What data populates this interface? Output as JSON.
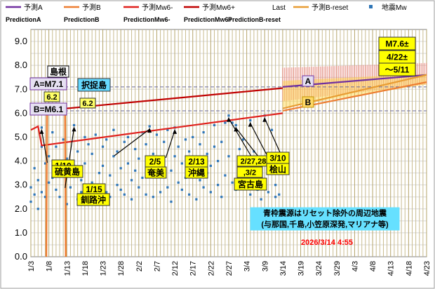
{
  "chart_data": {
    "type": "scatter",
    "title": "",
    "xlabel": "",
    "ylabel": "",
    "ylim": [
      0,
      9.5
    ],
    "y_ticks": [
      "0.0",
      "0.5",
      "1.0",
      "1.5",
      "2.0",
      "2.5",
      "3.0",
      "3.5",
      "4.0",
      "4.5",
      "5.0",
      "5.5",
      "6.0",
      "6.5",
      "7.0",
      "7.5",
      "8.0",
      "8.5",
      "9.0"
    ],
    "x_day_range": [
      3,
      113
    ],
    "x_ticks": [
      {
        "day": 3,
        "label": "1/3"
      },
      {
        "day": 8,
        "label": "1/8"
      },
      {
        "day": 13,
        "label": "1/13"
      },
      {
        "day": 18,
        "label": "1/18"
      },
      {
        "day": 23,
        "label": "1/23"
      },
      {
        "day": 28,
        "label": "1/28"
      },
      {
        "day": 33,
        "label": "2/2"
      },
      {
        "day": 38,
        "label": "2/7"
      },
      {
        "day": 43,
        "label": "2/12"
      },
      {
        "day": 48,
        "label": "2/17"
      },
      {
        "day": 53,
        "label": "2/22"
      },
      {
        "day": 58,
        "label": "2/27"
      },
      {
        "day": 63,
        "label": "3/4"
      },
      {
        "day": 68,
        "label": "3/9"
      },
      {
        "day": 73,
        "label": "3/14"
      },
      {
        "day": 78,
        "label": "3/19"
      },
      {
        "day": 83,
        "label": "3/24"
      },
      {
        "day": 88,
        "label": "3/29"
      },
      {
        "day": 93,
        "label": "4/3"
      },
      {
        "day": 98,
        "label": "4/8"
      },
      {
        "day": 103,
        "label": "4/13"
      },
      {
        "day": 108,
        "label": "4/18"
      },
      {
        "day": 113,
        "label": "4/23"
      }
    ],
    "legend": [
      {
        "label": "予測A",
        "sub": "PredictionA",
        "color": "#7030a0",
        "kind": "line"
      },
      {
        "label": "予測B",
        "sub": "PredictionB",
        "color": "#ed7d31",
        "kind": "line"
      },
      {
        "label": "予測Mw6-",
        "sub": "PredictionMw6-",
        "color": "#e0201c",
        "kind": "line"
      },
      {
        "label": "予測Mw6+",
        "sub": "PredictionMw6+",
        "color": "#c00000",
        "kind": "line"
      },
      {
        "label": "Last",
        "sub": "PredictionB-reset",
        "color": "none",
        "kind": "text"
      },
      {
        "label": "予測B-reset",
        "sub": "",
        "color": "#e89c32",
        "kind": "line"
      },
      {
        "label": "地震Mw",
        "sub": "",
        "color": "#2e75b6",
        "kind": "point"
      }
    ],
    "series": [
      {
        "name": "予測Mw6+",
        "color": "#c00000",
        "points": [
          [
            13,
            6.2
          ],
          [
            73,
            7.05
          ]
        ]
      },
      {
        "name": "予測Mw6-",
        "color": "#e0201c",
        "points": [
          [
            3,
            5.3
          ],
          [
            5,
            5.45
          ],
          [
            6,
            4.65
          ],
          [
            73,
            6.0
          ]
        ]
      },
      {
        "name": "予測A",
        "color": "#7030a0",
        "points": [
          [
            73,
            7.1
          ],
          [
            113,
            7.6
          ]
        ]
      },
      {
        "name": "予測B",
        "color": "#ed7d31",
        "points": [
          [
            73,
            6.1
          ],
          [
            113,
            7.3
          ]
        ]
      },
      {
        "name": "予測B-reset",
        "color": "#e89c32",
        "points": [
          [
            73,
            6.2
          ],
          [
            113,
            7.6
          ]
        ]
      },
      {
        "name": "予測B reset spikes",
        "color": "#ed7d31",
        "points": [
          [
            7.3,
            0.0
          ],
          [
            7.5,
            6.2
          ],
          [
            12.5,
            6.2
          ],
          [
            12.7,
            0.0
          ]
        ]
      }
    ],
    "reference_lines": [
      {
        "label": "A=M7.1",
        "y": 7.1
      },
      {
        "label": "B=M6.1",
        "y": 6.1
      }
    ],
    "uncertainty_band": {
      "x_from": 73,
      "x_to": 113,
      "upper_from": 7.9,
      "upper_to": 8.1,
      "lower_from": 6.5,
      "lower_to": 7.2
    },
    "earthquakes": [
      [
        3,
        2.3
      ],
      [
        3,
        2.9
      ],
      [
        4,
        3.7
      ],
      [
        4,
        2.6
      ],
      [
        5,
        2.0
      ],
      [
        5,
        3.2
      ],
      [
        6,
        5.4
      ],
      [
        6,
        2.7
      ],
      [
        6,
        4.6
      ],
      [
        7,
        3.9
      ],
      [
        7,
        2.5
      ],
      [
        8,
        3.1
      ],
      [
        8,
        4.2
      ],
      [
        9,
        5.2
      ],
      [
        9,
        3.3
      ],
      [
        10,
        2.8
      ],
      [
        10,
        4.6
      ],
      [
        11,
        3.7
      ],
      [
        11,
        2.5
      ],
      [
        12,
        4.9
      ],
      [
        12,
        3.4
      ],
      [
        13,
        2.2
      ],
      [
        13,
        4.1
      ],
      [
        14,
        3.6
      ],
      [
        14,
        2.9
      ],
      [
        15,
        5.5
      ],
      [
        15,
        3.8
      ],
      [
        16,
        2.4
      ],
      [
        16,
        4.4
      ],
      [
        17,
        3.2
      ],
      [
        17,
        2.7
      ],
      [
        18,
        5.0
      ],
      [
        18,
        3.9
      ],
      [
        19,
        2.6
      ],
      [
        19,
        4.7
      ],
      [
        20,
        3.1
      ],
      [
        20,
        4.3
      ],
      [
        21,
        2.9
      ],
      [
        21,
        5.1
      ],
      [
        22,
        3.5
      ],
      [
        22,
        2.3
      ],
      [
        23,
        4.6
      ],
      [
        23,
        3.8
      ],
      [
        24,
        2.7
      ],
      [
        24,
        4.9
      ],
      [
        25,
        3.4
      ],
      [
        25,
        2.5
      ],
      [
        26,
        4.2
      ],
      [
        26,
        5.3
      ],
      [
        27,
        3.0
      ],
      [
        27,
        4.4
      ],
      [
        28,
        2.8
      ],
      [
        28,
        3.7
      ],
      [
        29,
        4.8
      ],
      [
        29,
        2.6
      ],
      [
        30,
        3.9
      ],
      [
        30,
        5.0
      ],
      [
        31,
        3.2
      ],
      [
        31,
        2.4
      ],
      [
        32,
        4.5
      ],
      [
        32,
        3.6
      ],
      [
        33,
        2.9
      ],
      [
        33,
        4.1
      ],
      [
        34,
        3.3
      ],
      [
        34,
        5.2
      ],
      [
        35,
        2.6
      ],
      [
        35,
        4.7
      ],
      [
        36,
        5.45
      ],
      [
        36,
        3.4
      ],
      [
        37,
        2.5
      ],
      [
        37,
        4.3
      ],
      [
        38,
        3.8
      ],
      [
        38,
        5.1
      ],
      [
        39,
        2.7
      ],
      [
        39,
        4.0
      ],
      [
        40,
        3.5
      ],
      [
        40,
        4.8
      ],
      [
        41,
        2.9
      ],
      [
        41,
        5.3
      ],
      [
        42,
        3.6
      ],
      [
        42,
        2.3
      ],
      [
        43,
        5.4
      ],
      [
        43,
        4.2
      ],
      [
        44,
        3.1
      ],
      [
        44,
        4.6
      ],
      [
        45,
        2.8
      ],
      [
        45,
        3.9
      ],
      [
        46,
        4.9
      ],
      [
        46,
        3.3
      ],
      [
        47,
        2.6
      ],
      [
        47,
        4.4
      ],
      [
        48,
        3.7
      ],
      [
        48,
        5.0
      ],
      [
        49,
        2.4
      ],
      [
        49,
        4.1
      ],
      [
        50,
        3.2
      ],
      [
        50,
        4.7
      ],
      [
        51,
        2.9
      ],
      [
        51,
        5.2
      ],
      [
        52,
        3.5
      ],
      [
        52,
        4.3
      ],
      [
        53,
        2.7
      ],
      [
        53,
        3.8
      ],
      [
        54,
        4.6
      ],
      [
        54,
        5.5
      ],
      [
        55,
        3.0
      ],
      [
        55,
        4.0
      ],
      [
        56,
        2.5
      ],
      [
        56,
        4.8
      ],
      [
        57,
        5.6
      ],
      [
        57,
        3.4
      ],
      [
        58,
        5.9
      ],
      [
        58,
        4.2
      ],
      [
        59,
        3.1
      ],
      [
        59,
        5.6
      ],
      [
        60,
        5.5
      ],
      [
        60,
        2.8
      ],
      [
        61,
        4.5
      ],
      [
        61,
        3.6
      ],
      [
        62,
        2.9
      ],
      [
        62,
        4.9
      ],
      [
        63,
        3.3
      ],
      [
        63,
        4.1
      ],
      [
        64,
        2.6
      ],
      [
        64,
        5.7
      ],
      [
        65,
        3.9
      ],
      [
        65,
        4.4
      ],
      [
        66,
        2.8
      ],
      [
        66,
        3.5
      ],
      [
        67,
        4.0
      ],
      [
        67,
        2.4
      ],
      [
        68,
        5.9
      ],
      [
        68,
        3.2
      ],
      [
        69,
        2.7
      ],
      [
        69,
        4.3
      ],
      [
        70,
        5.3
      ],
      [
        70,
        3.6
      ],
      [
        71,
        2.5
      ],
      [
        71,
        3.0
      ],
      [
        72,
        2.6
      ],
      [
        72,
        3.8
      ]
    ],
    "annotations": [
      {
        "text": "島根",
        "fill": "#ffffff",
        "stroke": "#000000",
        "color": "#000000"
      },
      {
        "text": "6.2",
        "fill": "#ffff66",
        "stroke": "#333333",
        "color": "#000000"
      },
      {
        "text": "択捉島",
        "fill": "#66d9ff",
        "stroke": "#333333",
        "color": "#000000"
      },
      {
        "text": "6.2",
        "fill": "#ffff66",
        "stroke": "#333333",
        "color": "#000000"
      },
      {
        "text": "1/10",
        "fill": "#ffff00",
        "stroke": "#333333",
        "color": "#000000"
      },
      {
        "text": "硫黄島",
        "fill": "#ffff00",
        "stroke": "#333333",
        "color": "#000000"
      },
      {
        "text": "1/15",
        "fill": "#ffff00",
        "stroke": "#333333",
        "color": "#000000"
      },
      {
        "text": "釧路沖",
        "fill": "#ffff00",
        "stroke": "#333333",
        "color": "#000000"
      },
      {
        "text": "2/5",
        "fill": "#ffff00",
        "stroke": "#333333",
        "color": "#000000"
      },
      {
        "text": "奄美",
        "fill": "#ffff00",
        "stroke": "#333333",
        "color": "#000000"
      },
      {
        "text": "2/13",
        "fill": "#ffff00",
        "stroke": "#333333",
        "color": "#000000"
      },
      {
        "text": "沖縄",
        "fill": "#ffff00",
        "stroke": "#333333",
        "color": "#000000"
      },
      {
        "text": "2/27,28",
        "fill": "#ffff00",
        "stroke": "#333333",
        "color": "#000000"
      },
      {
        "text": ",3/2",
        "fill": "#ffff00",
        "stroke": "#333333",
        "color": "#000000"
      },
      {
        "text": "宮古島",
        "fill": "#ffff00",
        "stroke": "#333333",
        "color": "#000000"
      },
      {
        "text": "3/10",
        "fill": "#ffff00",
        "stroke": "#333333",
        "color": "#000000"
      },
      {
        "text": "桧山",
        "fill": "#ffff00",
        "stroke": "#333333",
        "color": "#000000"
      },
      {
        "text": "A=M7.1",
        "fill": "#e6e0f2",
        "stroke": "#7030a0",
        "color": "#000000"
      },
      {
        "text": "B=M6.1",
        "fill": "#e6e0f2",
        "stroke": "#7030a0",
        "color": "#000000"
      },
      {
        "text": "A",
        "fill": "#e6e0f2",
        "stroke": "#7030a0",
        "color": "#000000"
      },
      {
        "text": "B",
        "fill": "#ffd966",
        "stroke": "#bf9000",
        "color": "#000000"
      },
      {
        "text": "M7.6±",
        "fill": "#ffff00",
        "stroke": "#333333",
        "color": "#000000"
      },
      {
        "text": "4/22±",
        "fill": "#ffff00",
        "stroke": "#333333",
        "color": "#000000"
      },
      {
        "text": "～5/11",
        "fill": "#ffff00",
        "stroke": "#333333",
        "color": "#000000"
      },
      {
        "text": "青枠震源はリセット除外の周辺地震",
        "fill": "#66e0ff",
        "stroke": "#66e0ff",
        "color": "#000000"
      },
      {
        "text": "(与那国,千島,小笠原深発,マリアナ等)",
        "fill": "#66e0ff",
        "stroke": "#66e0ff",
        "color": "#000000"
      },
      {
        "text": "2026/3/14 4:55",
        "fill": "none",
        "stroke": "none",
        "color": "#ff0000"
      }
    ]
  }
}
